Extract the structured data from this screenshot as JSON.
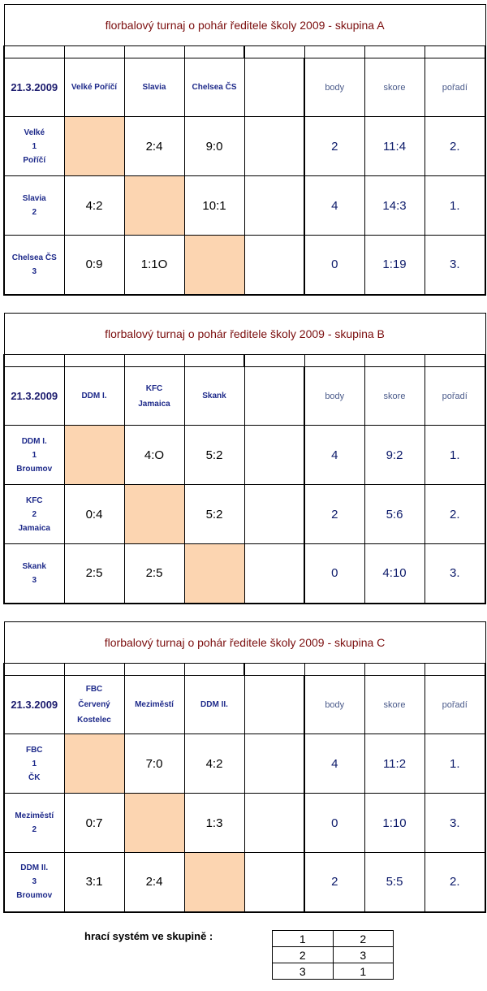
{
  "date": "21.3.2009",
  "labels": {
    "body": "body",
    "skore": "skore",
    "poradi": "pořadí"
  },
  "groups": [
    {
      "title": "florbalový turnaj o pohár ředitele školy 2009 - skupina  A",
      "columns": [
        [
          "Velké Poříčí"
        ],
        [
          "Slavia"
        ],
        [
          "Chelsea ČS"
        ]
      ],
      "teams": [
        {
          "lines": [
            "Velké",
            "1",
            "Poříčí"
          ],
          "scores": [
            "",
            "2:4",
            "9:0"
          ],
          "body": "2",
          "skore": "11:4",
          "poradi": "2."
        },
        {
          "lines": [
            "Slavia",
            "2"
          ],
          "scores": [
            "4:2",
            "",
            "10:1"
          ],
          "body": "4",
          "skore": "14:3",
          "poradi": "1."
        },
        {
          "lines": [
            "Chelsea ČS",
            "3"
          ],
          "scores": [
            "0:9",
            "1:1O",
            ""
          ],
          "body": "0",
          "skore": "1:19",
          "poradi": "3."
        }
      ]
    },
    {
      "title": "florbalový turnaj o pohár ředitele školy 2009 - skupina  B",
      "columns": [
        [
          "DDM I."
        ],
        [
          "KFC",
          "Jamaica"
        ],
        [
          "Skank"
        ]
      ],
      "teams": [
        {
          "lines": [
            "DDM I.",
            "1",
            "Broumov"
          ],
          "scores": [
            "",
            "4:O",
            "5:2"
          ],
          "body": "4",
          "skore": "9:2",
          "poradi": "1."
        },
        {
          "lines": [
            "KFC",
            "2",
            "Jamaica"
          ],
          "scores": [
            "0:4",
            "",
            "5:2"
          ],
          "body": "2",
          "skore": "5:6",
          "poradi": "2."
        },
        {
          "lines": [
            "Skank",
            "3"
          ],
          "scores": [
            "2:5",
            "2:5",
            ""
          ],
          "body": "0",
          "skore": "4:10",
          "poradi": "3."
        }
      ]
    },
    {
      "title": "florbalový turnaj o pohár ředitele školy 2009 - skupina  C",
      "columns": [
        [
          "FBC",
          "Červený",
          "Kostelec"
        ],
        [
          "Meziměstí"
        ],
        [
          "DDM II."
        ]
      ],
      "teams": [
        {
          "lines": [
            "FBC",
            "1",
            "ČK"
          ],
          "scores": [
            "",
            "7:0",
            "4:2"
          ],
          "body": "4",
          "skore": "11:2",
          "poradi": "1."
        },
        {
          "lines": [
            "Meziměstí",
            "2"
          ],
          "scores": [
            "0:7",
            "",
            "1:3"
          ],
          "body": "0",
          "skore": "1:10",
          "poradi": "3."
        },
        {
          "lines": [
            "DDM II.",
            "3",
            "Broumov"
          ],
          "scores": [
            "3:1",
            "2:4",
            ""
          ],
          "body": "2",
          "skore": "5:5",
          "poradi": "2."
        }
      ]
    }
  ],
  "system": {
    "label": "hrací systém ve skupině :",
    "rows": [
      [
        "1",
        "2"
      ],
      [
        "2",
        "3"
      ],
      [
        "3",
        "1"
      ]
    ]
  }
}
